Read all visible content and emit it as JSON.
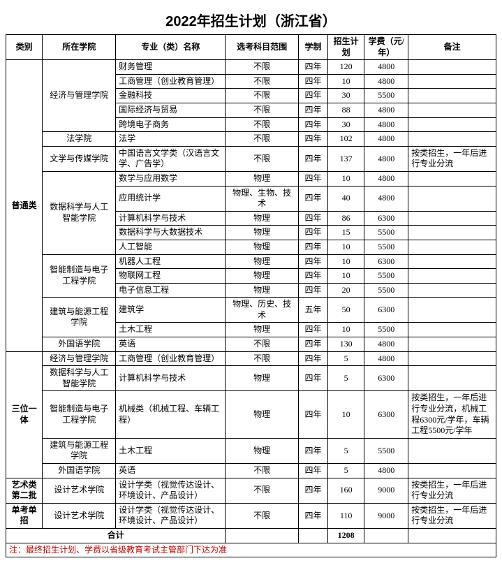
{
  "title": "2022年招生计划（浙江省）",
  "headers": {
    "category": "类别",
    "school": "所在学院",
    "major": "专业（类）名称",
    "subjects": "选考科目范围",
    "duration": "学制",
    "plan": "招生计划",
    "fee": "学费（元/年）",
    "note": "备注"
  },
  "categories": [
    {
      "name": "普通类",
      "schools": [
        {
          "name": "经济与管理学院",
          "rows": [
            {
              "major": "财务管理",
              "subj": "不限",
              "dur": "四年",
              "plan": "120",
              "fee": "4800",
              "note": ""
            },
            {
              "major": "工商管理（创业教育管理）",
              "subj": "不限",
              "dur": "四年",
              "plan": "10",
              "fee": "4800",
              "note": ""
            },
            {
              "major": "金融科技",
              "subj": "不限",
              "dur": "四年",
              "plan": "30",
              "fee": "5500",
              "note": ""
            },
            {
              "major": "国际经济与贸易",
              "subj": "不限",
              "dur": "四年",
              "plan": "88",
              "fee": "4800",
              "note": ""
            },
            {
              "major": "跨境电子商务",
              "subj": "不限",
              "dur": "四年",
              "plan": "30",
              "fee": "4800",
              "note": ""
            }
          ]
        },
        {
          "name": "法学院",
          "rows": [
            {
              "major": "法学",
              "subj": "不限",
              "dur": "四年",
              "plan": "102",
              "fee": "4800",
              "note": ""
            }
          ]
        },
        {
          "name": "文学与传媒学院",
          "rows": [
            {
              "major": "中国语言文学类（汉语言文学、广告学）",
              "subj": "不限",
              "dur": "四年",
              "plan": "137",
              "fee": "4800",
              "note": "按类招生，一年后进行专业分流"
            }
          ]
        },
        {
          "name": "数据科学与人工智能学院",
          "rows": [
            {
              "major": "数学与应用数学",
              "subj": "物理",
              "dur": "四年",
              "plan": "10",
              "fee": "4800",
              "note": ""
            },
            {
              "major": "应用统计学",
              "subj": "物理、生物、技术",
              "dur": "四年",
              "plan": "40",
              "fee": "4800",
              "note": ""
            },
            {
              "major": "计算机科学与技术",
              "subj": "物理",
              "dur": "四年",
              "plan": "86",
              "fee": "6300",
              "note": ""
            },
            {
              "major": "数据科学与大数据技术",
              "subj": "物理",
              "dur": "四年",
              "plan": "15",
              "fee": "5500",
              "note": ""
            },
            {
              "major": "人工智能",
              "subj": "物理",
              "dur": "四年",
              "plan": "10",
              "fee": "5500",
              "note": ""
            }
          ]
        },
        {
          "name": "智能制造与电子工程学院",
          "rows": [
            {
              "major": "机器人工程",
              "subj": "物理",
              "dur": "四年",
              "plan": "10",
              "fee": "6300",
              "note": ""
            },
            {
              "major": "物联网工程",
              "subj": "物理",
              "dur": "四年",
              "plan": "10",
              "fee": "5500",
              "note": ""
            },
            {
              "major": "电子信息工程",
              "subj": "物理",
              "dur": "四年",
              "plan": "20",
              "fee": "5500",
              "note": ""
            }
          ]
        },
        {
          "name": "建筑与能源工程学院",
          "rows": [
            {
              "major": "建筑学",
              "subj": "物理、历史、技术",
              "dur": "五年",
              "plan": "50",
              "fee": "6300",
              "note": ""
            },
            {
              "major": "土木工程",
              "subj": "物理",
              "dur": "四年",
              "plan": "10",
              "fee": "5500",
              "note": ""
            }
          ]
        },
        {
          "name": "外国语学院",
          "rows": [
            {
              "major": "英语",
              "subj": "不限",
              "dur": "四年",
              "plan": "130",
              "fee": "4800",
              "note": ""
            }
          ]
        }
      ]
    },
    {
      "name": "三位一体",
      "schools": [
        {
          "name": "经济与管理学院",
          "rows": [
            {
              "major": "工商管理（创业教育管理）",
              "subj": "不限",
              "dur": "四年",
              "plan": "5",
              "fee": "4800",
              "note": ""
            }
          ]
        },
        {
          "name": "数据科学与人工智能学院",
          "rows": [
            {
              "major": "计算机科学与技术",
              "subj": "物理",
              "dur": "四年",
              "plan": "5",
              "fee": "6300",
              "note": ""
            }
          ]
        },
        {
          "name": "智能制造与电子工程学院",
          "rows": [
            {
              "major": "机械类（机械工程、车辆工程）",
              "subj": "物理",
              "dur": "四年",
              "plan": "10",
              "fee": "6300",
              "note": "按类招生，一年后进行专业分流，机械工程6300元/学年，车辆工程5500元/学年"
            }
          ]
        },
        {
          "name": "建筑与能源工程学院",
          "rows": [
            {
              "major": "土木工程",
              "subj": "物理",
              "dur": "四年",
              "plan": "5",
              "fee": "5500",
              "note": ""
            }
          ]
        },
        {
          "name": "外国语学院",
          "rows": [
            {
              "major": "英语",
              "subj": "不限",
              "dur": "四年",
              "plan": "5",
              "fee": "4800",
              "note": ""
            }
          ]
        }
      ]
    },
    {
      "name": "艺术类第二批",
      "schools": [
        {
          "name": "设计艺术学院",
          "rows": [
            {
              "major": "设计学类（视觉传达设计、环境设计、产品设计）",
              "subj": "不限",
              "dur": "四年",
              "plan": "160",
              "fee": "9000",
              "note": "按类招生，一年后进行专业分流"
            }
          ]
        }
      ]
    },
    {
      "name": "单考单招",
      "schools": [
        {
          "name": "设计艺术学院",
          "rows": [
            {
              "major": "设计学类（视觉传达设计、环境设计、产品设计）",
              "subj": "不限",
              "dur": "四年",
              "plan": "110",
              "fee": "9000",
              "note": "按类招生，一年后进行专业分流"
            }
          ]
        }
      ]
    }
  ],
  "total_label": "合计",
  "total_plan": "1208",
  "footnote": "注：最终招生计划、学费以省级教育考试主管部门下达为准"
}
